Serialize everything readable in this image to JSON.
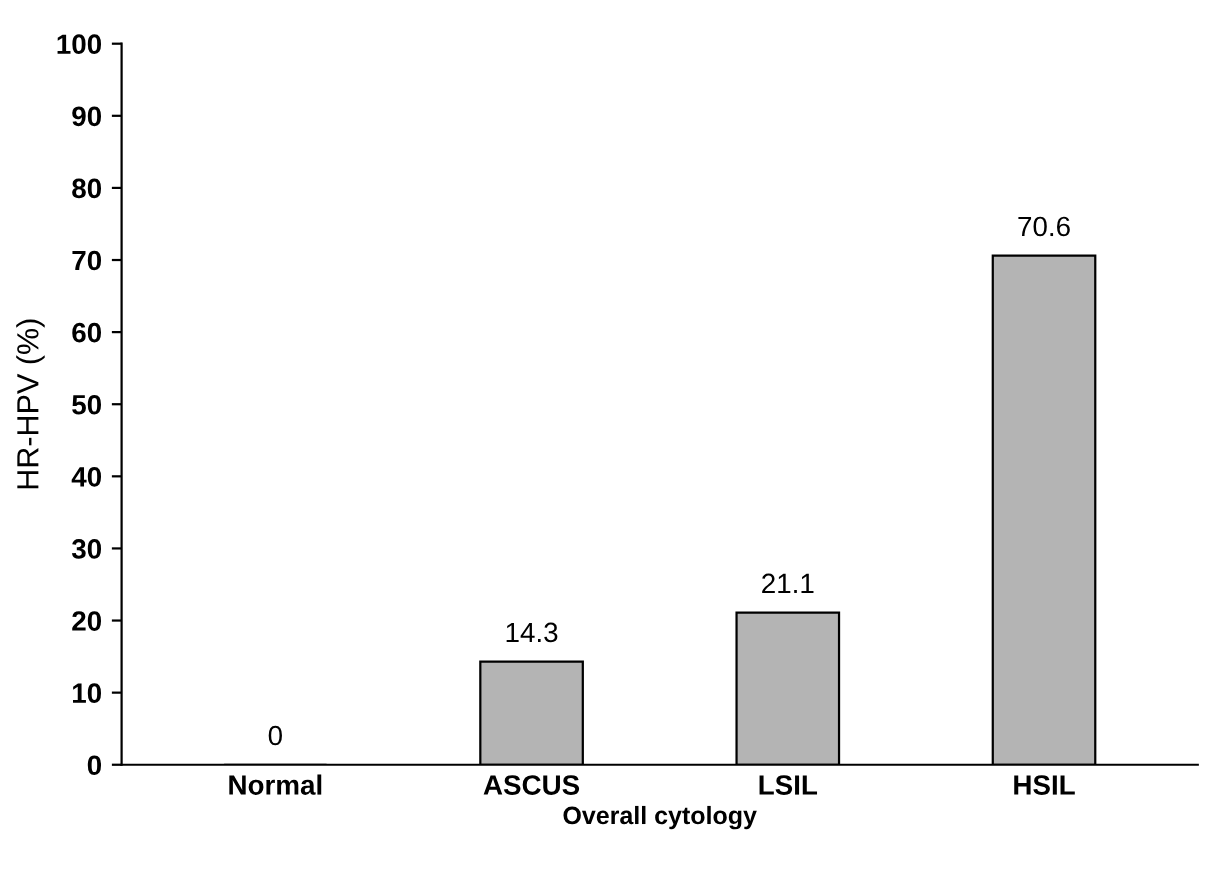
{
  "chart_data": {
    "type": "bar",
    "xlabel": "Overall cytology",
    "ylabel": "HR-HPV (%)",
    "categories": [
      "Normal",
      "ASCUS",
      "LSIL",
      "HSIL"
    ],
    "values": [
      0,
      14.3,
      21.1,
      70.6
    ],
    "color": "#b4b4b4",
    "ylim": [
      0,
      100
    ],
    "yticks": [
      0,
      10,
      20,
      30,
      40,
      50,
      60,
      70,
      80,
      90,
      100
    ],
    "data_labels": true,
    "grid": false,
    "legend": false
  }
}
